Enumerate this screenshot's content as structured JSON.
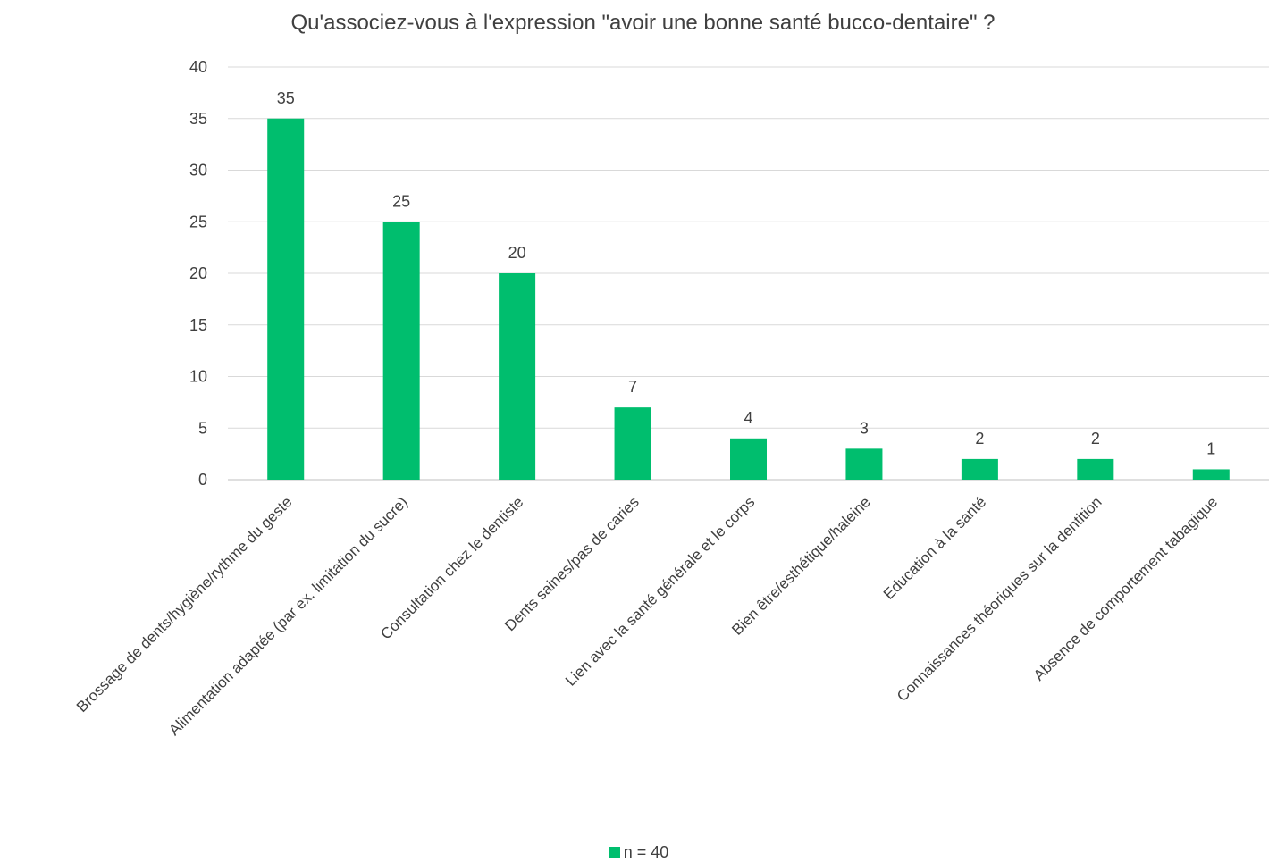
{
  "chart_data": {
    "type": "bar",
    "title": "Qu'associez-vous à l'expression \"avoir une bonne santé bucco-dentaire\" ?",
    "categories": [
      "Brossage de dents/hygiène/rythme du geste",
      "Alimentation adaptée (par ex. limitation du sucre)",
      "Consultation chez le dentiste",
      "Dents saines/pas de caries",
      "Lien avec la santé générale et le corps",
      "Bien être/esthétique/haleine",
      "Education à la santé",
      "Connaissances théoriques sur la dentition",
      "Absence de comportement tabagique"
    ],
    "series": [
      {
        "name": "n = 40",
        "values": [
          35,
          25,
          20,
          7,
          4,
          3,
          2,
          2,
          1
        ],
        "color": "#00BE6E"
      }
    ],
    "yticks": [
      "0",
      "5",
      "10",
      "15",
      "20",
      "25",
      "30",
      "35",
      "40"
    ],
    "ylim": [
      0,
      40
    ],
    "grid": true,
    "legend_position": "bottom",
    "data_labels": true
  }
}
